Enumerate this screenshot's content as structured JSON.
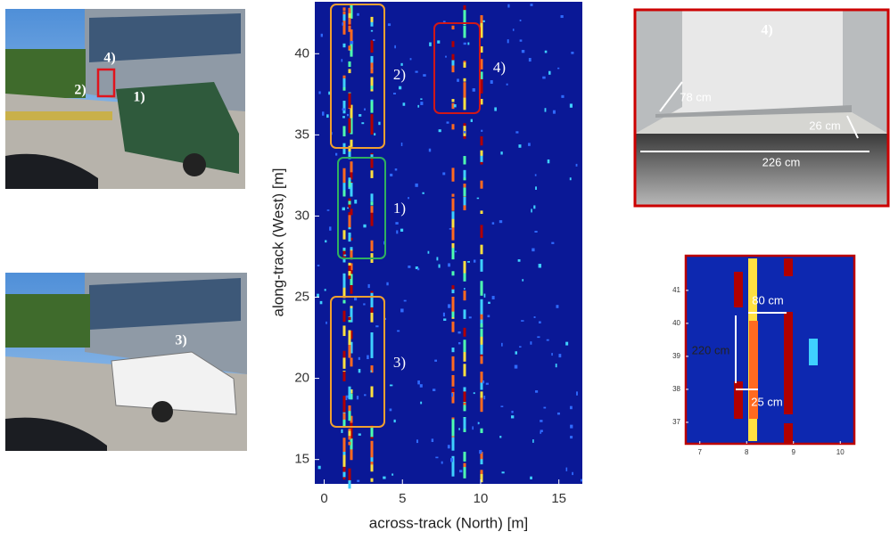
{
  "photos": [
    {
      "labels": [
        "4)",
        "2)",
        "1)"
      ]
    },
    {
      "labels": [
        "3)"
      ]
    },
    {
      "labels": [
        "4)",
        "78 cm",
        "26 cm",
        "226 cm"
      ]
    }
  ],
  "radar_map": {
    "xlabel": "across-track (North) [m]",
    "ylabel": "along-track (West) [m]",
    "xlim": [
      -0.6,
      16.5
    ],
    "ylim": [
      13.5,
      43.2
    ],
    "xticks": [
      0,
      5,
      10,
      15
    ],
    "yticks": [
      15,
      20,
      25,
      30,
      35,
      40
    ],
    "boxes": [
      "2)",
      "1)",
      "3)",
      "4)"
    ]
  },
  "zoom": {
    "xlim": [
      6.7,
      10.3
    ],
    "ylim": [
      36.35,
      42.05
    ],
    "xticks": [
      7,
      8,
      9,
      10
    ],
    "yticks": [
      37,
      38,
      39,
      40,
      41
    ],
    "labels": [
      "80 cm",
      "220 cm",
      "25 cm"
    ]
  }
}
